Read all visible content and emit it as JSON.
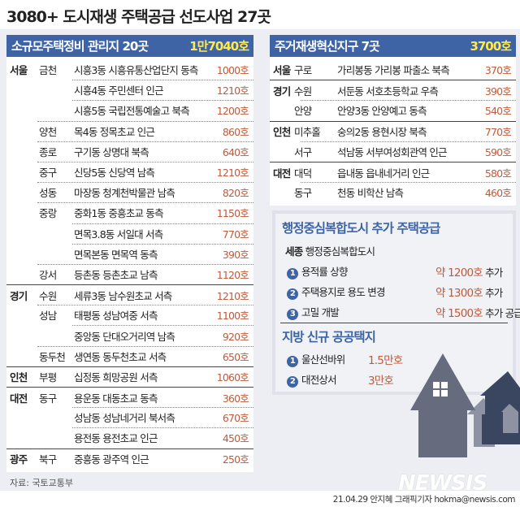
{
  "title": "3080+ 도시재생 주택공급 선도사업 27곳",
  "left": {
    "heading": "소규모주택정비 관리지 20곳",
    "total": "1만7040호",
    "rows": [
      {
        "region": "서울",
        "district": "금천",
        "location": "시흥3동 시흥유통산업단지 동측",
        "amount": "1000호"
      },
      {
        "region": "",
        "district": "",
        "location": "시흥4동 주민센터 인근",
        "amount": "1210호"
      },
      {
        "region": "",
        "district": "",
        "location": "시흥5동 국립전통예술고 북측",
        "amount": "1200호"
      },
      {
        "region": "",
        "district": "양천",
        "location": "목4동 정목초교 인근",
        "amount": "860호"
      },
      {
        "region": "",
        "district": "종로",
        "location": "구기동 상명대 북측",
        "amount": "640호"
      },
      {
        "region": "",
        "district": "중구",
        "location": "신당5동 신당역 남측",
        "amount": "1210호"
      },
      {
        "region": "",
        "district": "성동",
        "location": "마장동 청계천박물관 남측",
        "amount": "820호"
      },
      {
        "region": "",
        "district": "중랑",
        "location": "중화1동 중흥초교 동측",
        "amount": "1150호"
      },
      {
        "region": "",
        "district": "",
        "location": "면목3.8동 서일대 서측",
        "amount": "770호"
      },
      {
        "region": "",
        "district": "",
        "location": "면목본동 면목역 동측",
        "amount": "390호"
      },
      {
        "region": "",
        "district": "강서",
        "location": "등촌동 등촌초교 남측",
        "amount": "1120호"
      },
      {
        "region": "경기",
        "district": "수원",
        "location": "세류3동 남수원초교 서측",
        "amount": "1210호"
      },
      {
        "region": "",
        "district": "성남",
        "location": "태평동 성남여중 서측",
        "amount": "1100호"
      },
      {
        "region": "",
        "district": "",
        "location": "중앙동 단대오거리역 남측",
        "amount": "920호"
      },
      {
        "region": "",
        "district": "동두천",
        "location": "생연동 동두천초교 서측",
        "amount": "650호"
      },
      {
        "region": "인천",
        "district": "부평",
        "location": "십정동 희망공원 서측",
        "amount": "1060호"
      },
      {
        "region": "대전",
        "district": "동구",
        "location": "용운동 대동초교 동측",
        "amount": "360호"
      },
      {
        "region": "",
        "district": "",
        "location": "성남동 성남네거리 북서측",
        "amount": "670호"
      },
      {
        "region": "",
        "district": "",
        "location": "용전동 용전초교 인근",
        "amount": "450호"
      },
      {
        "region": "광주",
        "district": "북구",
        "location": "중흥동 광주역 인근",
        "amount": "250호"
      }
    ]
  },
  "right": {
    "heading": "주거재생혁신지구 7곳",
    "total": "3700호",
    "rows": [
      {
        "region": "서울",
        "district": "구로",
        "location": "가리봉동 가리봉 파출소 북측",
        "amount": "370호"
      },
      {
        "region": "경기",
        "district": "수원",
        "location": "서둔동 서호초등학교 우측",
        "amount": "390호"
      },
      {
        "region": "",
        "district": "안양",
        "location": "안양3동 안양예고 동측",
        "amount": "540호"
      },
      {
        "region": "인천",
        "district": "미추홀",
        "location": "숭의2동 용현시장 북측",
        "amount": "770호"
      },
      {
        "region": "",
        "district": "서구",
        "location": "석남동 서부여성회관역 인근",
        "amount": "590호"
      },
      {
        "region": "대전",
        "district": "대덕",
        "location": "읍내동 읍내네거리 인근",
        "amount": "580호"
      },
      {
        "region": "",
        "district": "동구",
        "location": "천동 비학산 남측",
        "amount": "460호"
      }
    ]
  },
  "sejong": {
    "heading": "행정중심복합도시 추가 주택공급",
    "region": "세종",
    "name": "행정중심복합도시",
    "items": [
      {
        "num": "1",
        "label": "용적률 상향",
        "amount": "약 1200호",
        "suffix": "추가"
      },
      {
        "num": "2",
        "label": "주택용지로 용도 변경",
        "amount": "약 1300호",
        "suffix": "추가"
      },
      {
        "num": "3",
        "label": "고밀 개발",
        "amount": "약 1500호",
        "suffix": "추가 공급"
      }
    ]
  },
  "local": {
    "heading": "지방 신규 공공택지",
    "items": [
      {
        "num": "1",
        "label": "울산선바위",
        "amount": "1.5만호"
      },
      {
        "num": "2",
        "label": "대전상서",
        "amount": "3만호"
      }
    ]
  },
  "source": "자료: 국토교통부",
  "logo": "NEWSIS",
  "credit": "21.04.29 안지혜 그래픽기자 hokma@newsis.com",
  "colors": {
    "header": "#3e64a6",
    "total": "#ffe94d",
    "amount": "#c05a3c",
    "background": "#eceef3"
  }
}
